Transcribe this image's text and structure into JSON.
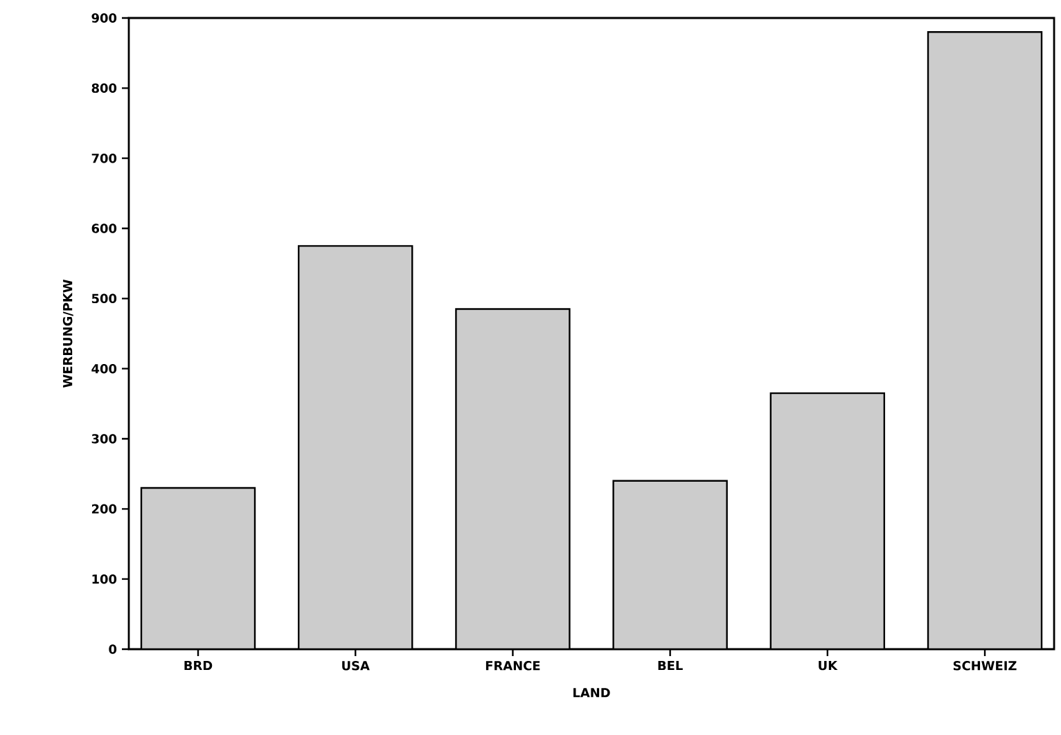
{
  "chart_data": {
    "type": "bar",
    "xlabel": "LAND",
    "ylabel": "WERBUNG/PKW",
    "categories": [
      "BRD",
      "USA",
      "FRANCE",
      "BEL",
      "UK",
      "SCHWEIZ"
    ],
    "values": [
      230,
      575,
      485,
      240,
      365,
      880
    ],
    "color": "#cccccc",
    "ylim": [
      0,
      900
    ],
    "yticks": [
      0,
      100,
      200,
      300,
      400,
      500,
      600,
      700,
      800,
      900
    ]
  }
}
